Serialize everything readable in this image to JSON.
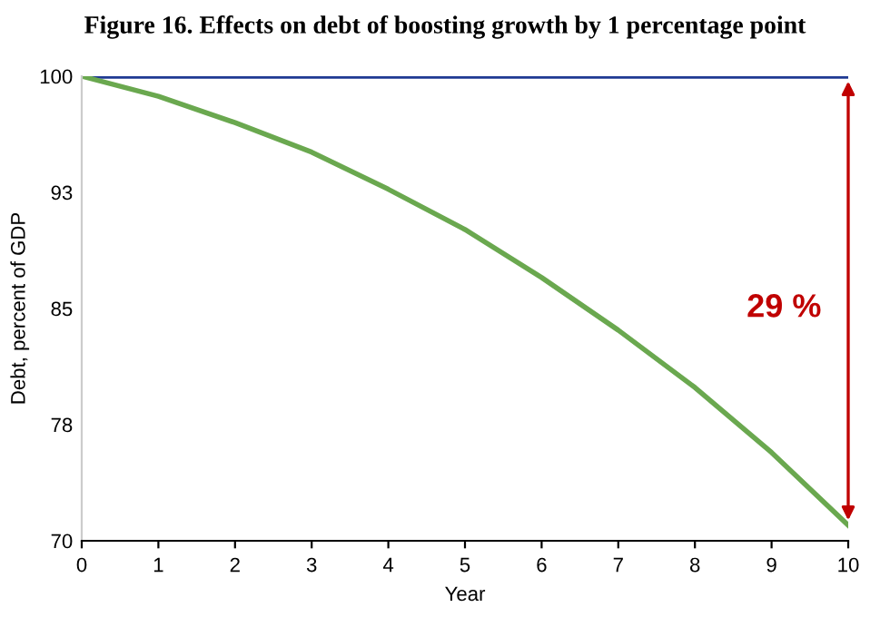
{
  "chart_data": {
    "type": "line",
    "title": "Figure 16. Effects on debt of boosting growth by 1 percentage point",
    "xlabel": "Year",
    "ylabel": "Debt, percent of GDP",
    "x": [
      0,
      1,
      2,
      3,
      4,
      5,
      6,
      7,
      8,
      9,
      10
    ],
    "series": [
      {
        "color": "#1f3a93",
        "values": [
          100,
          100,
          100,
          100,
          100,
          100,
          100,
          100,
          100,
          100,
          100
        ]
      },
      {
        "color": "#6aa84f",
        "values": [
          100,
          98.7,
          97.0,
          95.1,
          92.7,
          90.1,
          87.0,
          83.6,
          79.9,
          75.7,
          71.0
        ]
      }
    ],
    "xlim": [
      0,
      10
    ],
    "xticks": [
      0,
      1,
      2,
      3,
      4,
      5,
      6,
      7,
      8,
      9,
      10
    ],
    "ylim": [
      70,
      100
    ],
    "yticks": [
      70,
      {
        "value": 77.5,
        "label": "78"
      },
      85,
      {
        "value": 92.5,
        "label": "93"
      },
      100
    ],
    "annotations": [
      "29 %"
    ],
    "grid": false,
    "legend": false,
    "marker": "none",
    "line_style": "solid"
  }
}
